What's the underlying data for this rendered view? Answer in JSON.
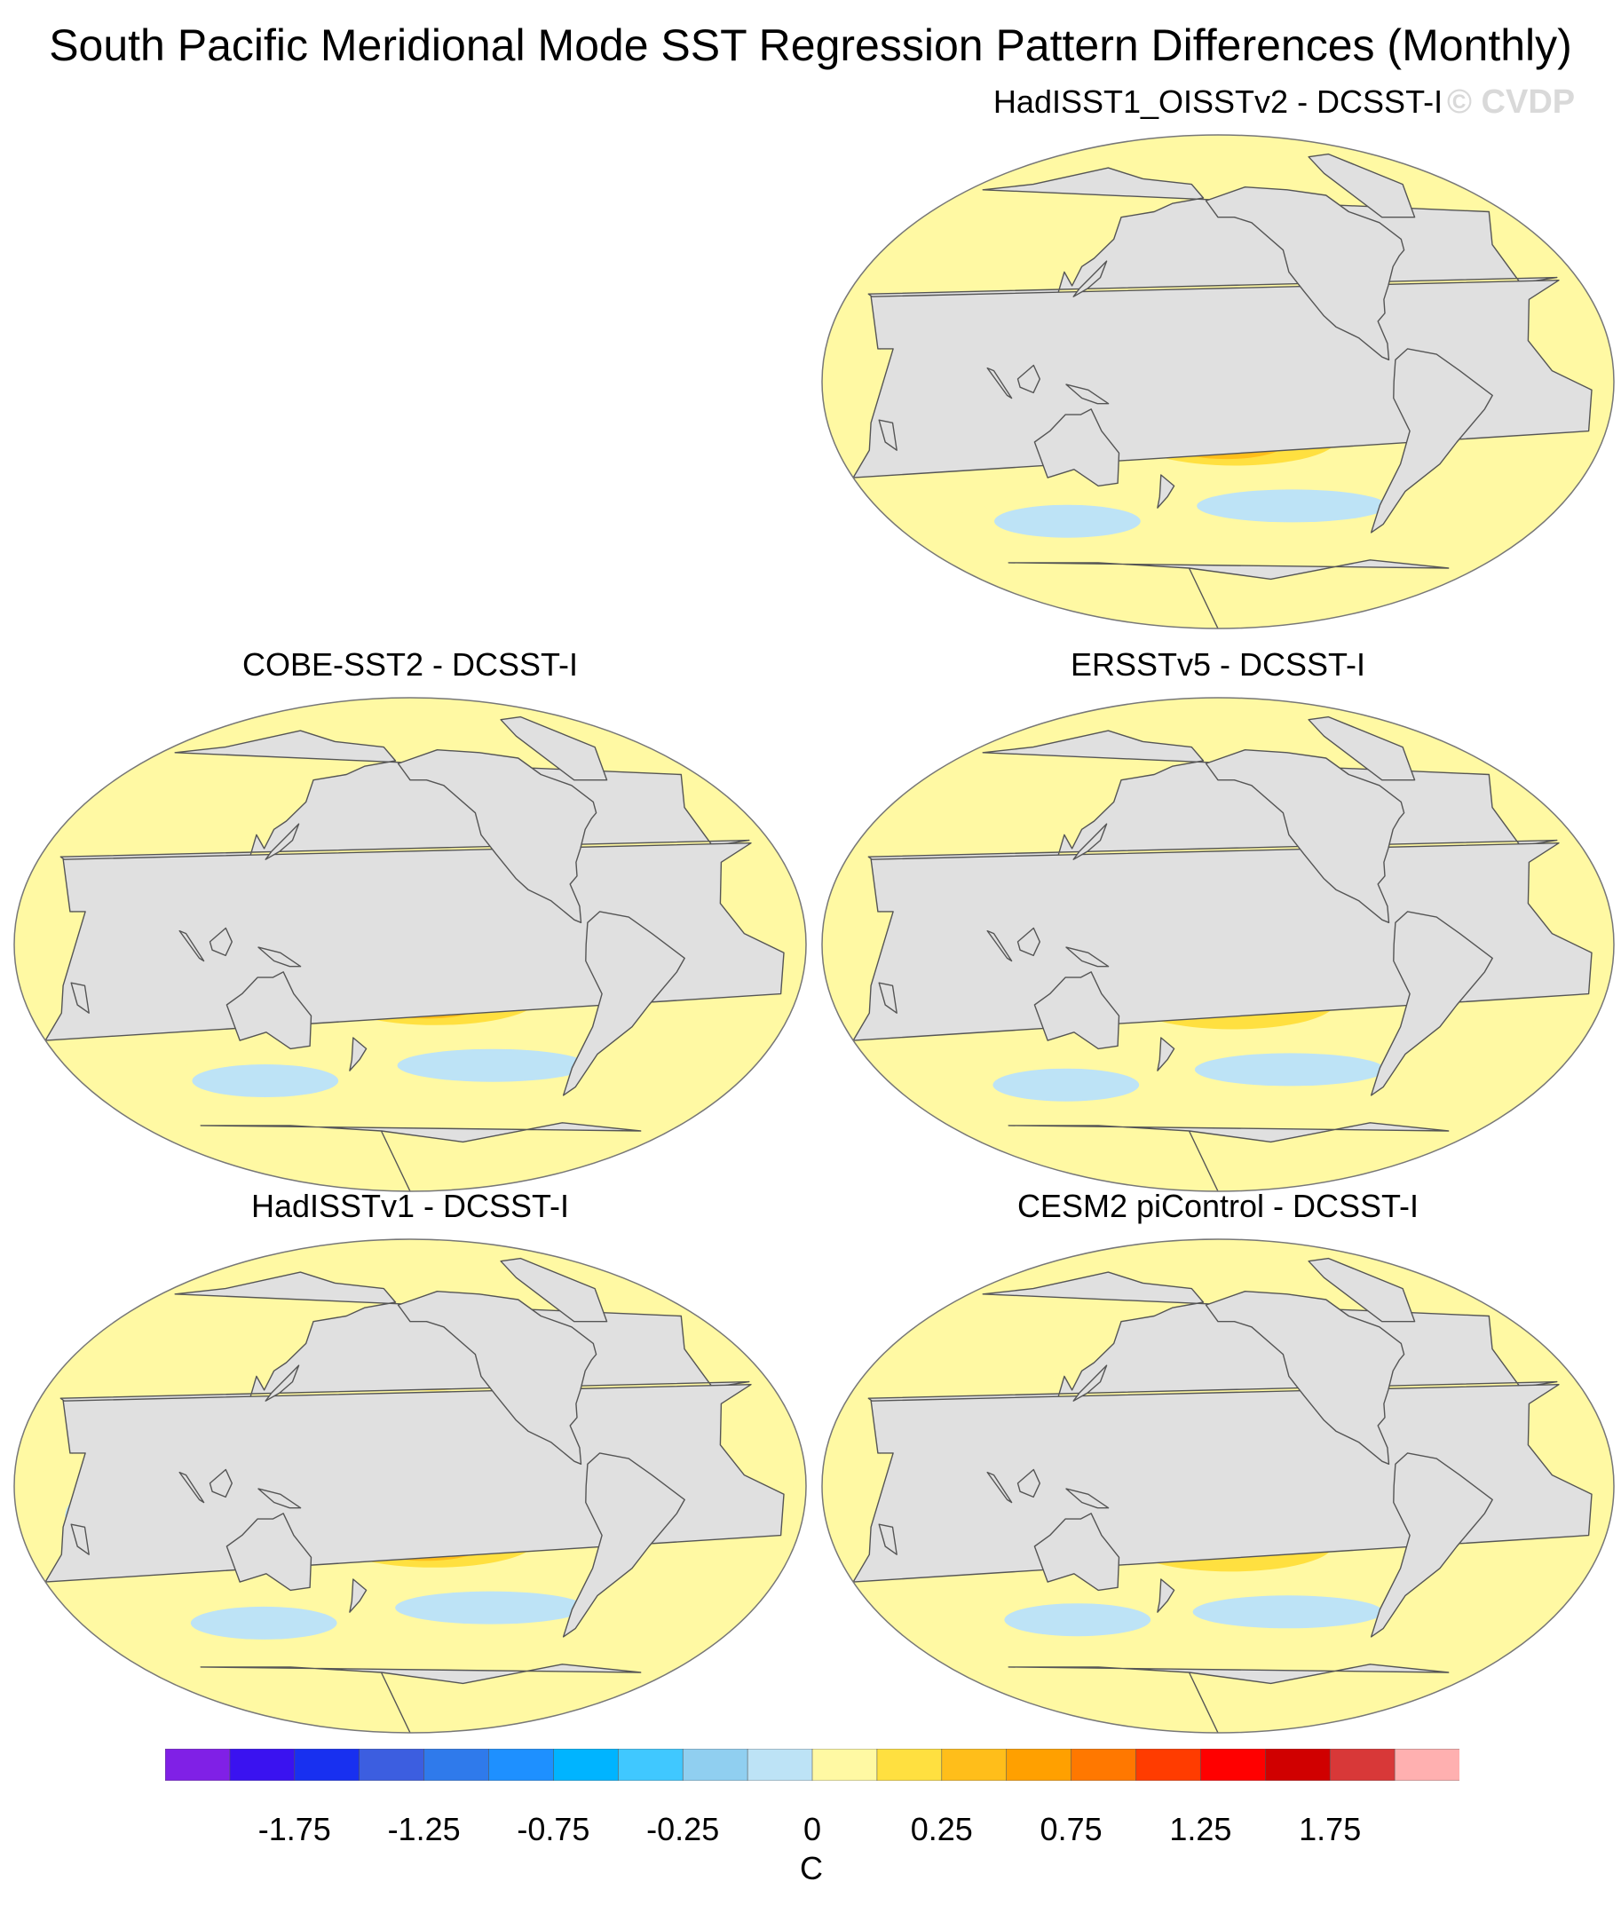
{
  "figure": {
    "title": "South Pacific Meridional Mode SST Regression Pattern Differences (Monthly)",
    "watermark": "© CVDP"
  },
  "panels": [
    {
      "id": "p1",
      "title": "HadISST1_OISSTv2 - DCSST-I",
      "strength": 1.0
    },
    {
      "id": "p2",
      "title": "COBE-SST2 - DCSST-I",
      "strength": 1.0
    },
    {
      "id": "p3",
      "title": "ERSSTv5 - DCSST-I",
      "strength": 1.35
    },
    {
      "id": "p4",
      "title": "HadISSTv1 - DCSST-I",
      "strength": 1.05
    },
    {
      "id": "p5",
      "title": "CESM2 piControl - DCSST-I",
      "strength": 0.85
    }
  ],
  "colorbar": {
    "colors": [
      "#8020e6",
      "#3a12f0",
      "#1830f0",
      "#3c5ee0",
      "#2f7aeb",
      "#1e90ff",
      "#00b4ff",
      "#40c8ff",
      "#90cff0",
      "#bde3f6",
      "#fff9a3",
      "#ffe040",
      "#ffbe1a",
      "#ffa000",
      "#ff7800",
      "#ff3c00",
      "#ff0000",
      "#d00000",
      "#d83838",
      "#ffb0b0"
    ],
    "labels": [
      "-1.75",
      "-1.25",
      "-0.75",
      "-0.25",
      "0",
      "0.25",
      "0.75",
      "1.25",
      "1.75"
    ],
    "units": "C"
  },
  "land_color": "#e0e0e0",
  "coast_color": "#555555"
}
